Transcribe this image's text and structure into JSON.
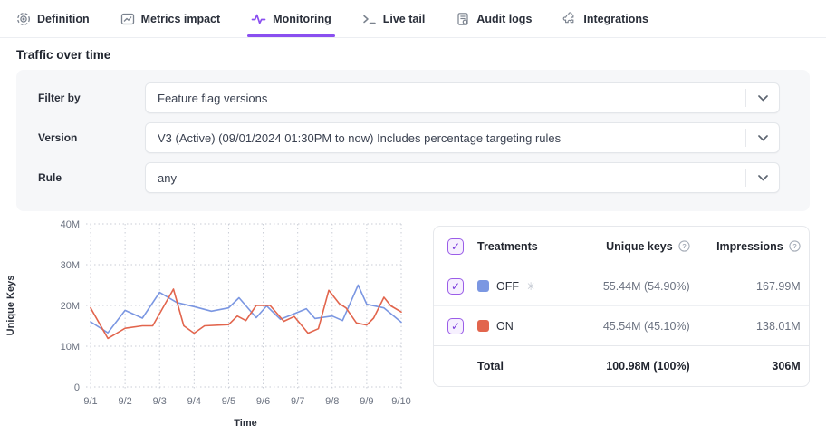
{
  "tabs": [
    {
      "label": "Definition",
      "icon": "target-icon",
      "active": false
    },
    {
      "label": "Metrics impact",
      "icon": "metrics-icon",
      "active": false
    },
    {
      "label": "Monitoring",
      "icon": "pulse-icon",
      "active": true
    },
    {
      "label": "Live tail",
      "icon": "terminal-icon",
      "active": false
    },
    {
      "label": "Audit logs",
      "icon": "audit-icon",
      "active": false
    },
    {
      "label": "Integrations",
      "icon": "puzzle-icon",
      "active": false
    }
  ],
  "page_title": "Traffic over time",
  "filters": [
    {
      "label": "Filter by",
      "value": "Feature flag versions"
    },
    {
      "label": "Version",
      "value": "V3 (Active) (09/01/2024 01:30PM to now) Includes percentage targeting rules"
    },
    {
      "label": "Rule",
      "value": "any"
    }
  ],
  "chart_data": {
    "type": "line",
    "title": "Traffic over time",
    "xlabel": "Time",
    "ylabel": "Unique Keys",
    "unit": "M",
    "ylim": [
      0,
      40
    ],
    "xlim": [
      1,
      10
    ],
    "grid": true,
    "legend": "table-right",
    "y_ticks": [
      {
        "v": 0,
        "label": "0"
      },
      {
        "v": 10,
        "label": "10M"
      },
      {
        "v": 20,
        "label": "20M"
      },
      {
        "v": 30,
        "label": "30M"
      },
      {
        "v": 40,
        "label": "40M"
      }
    ],
    "x_ticks": [
      {
        "v": 1,
        "label": "9/1"
      },
      {
        "v": 2,
        "label": "9/2"
      },
      {
        "v": 3,
        "label": "9/3"
      },
      {
        "v": 4,
        "label": "9/4"
      },
      {
        "v": 5,
        "label": "9/5"
      },
      {
        "v": 6,
        "label": "9/6"
      },
      {
        "v": 7,
        "label": "9/7"
      },
      {
        "v": 8,
        "label": "9/8"
      },
      {
        "v": 9,
        "label": "9/9"
      },
      {
        "v": 10,
        "label": "9/10"
      }
    ],
    "series": [
      {
        "name": "OFF",
        "color": "#7b97e2",
        "points": [
          [
            1,
            16
          ],
          [
            1.5,
            13.3
          ],
          [
            2,
            18.8
          ],
          [
            2.5,
            16.9
          ],
          [
            3,
            23.2
          ],
          [
            3.5,
            20.7
          ],
          [
            4,
            19.7
          ],
          [
            4.5,
            18.6
          ],
          [
            5,
            19.4
          ],
          [
            5.3,
            21.9
          ],
          [
            5.8,
            17
          ],
          [
            6.1,
            19.9
          ],
          [
            6.5,
            16.6
          ],
          [
            6.8,
            17.6
          ],
          [
            7.25,
            19.2
          ],
          [
            7.5,
            16.8
          ],
          [
            8,
            17.4
          ],
          [
            8.3,
            16.3
          ],
          [
            8.75,
            25
          ],
          [
            9,
            20.3
          ],
          [
            9.5,
            19.4
          ],
          [
            10,
            15.9
          ]
        ]
      },
      {
        "name": "ON",
        "color": "#e2654d",
        "points": [
          [
            1,
            19.4
          ],
          [
            1.5,
            11.9
          ],
          [
            2,
            14.4
          ],
          [
            2.5,
            15
          ],
          [
            2.8,
            15
          ],
          [
            3.4,
            24
          ],
          [
            3.7,
            15
          ],
          [
            4,
            13.2
          ],
          [
            4.3,
            15
          ],
          [
            5,
            15.3
          ],
          [
            5.25,
            17.4
          ],
          [
            5.5,
            16.3
          ],
          [
            5.8,
            20
          ],
          [
            6.2,
            20
          ],
          [
            6.6,
            16.1
          ],
          [
            6.9,
            17.3
          ],
          [
            7.3,
            13.2
          ],
          [
            7.6,
            14.3
          ],
          [
            7.9,
            23.7
          ],
          [
            8.2,
            20.5
          ],
          [
            8.4,
            19.4
          ],
          [
            8.7,
            15.7
          ],
          [
            9,
            15.2
          ],
          [
            9.2,
            16.9
          ],
          [
            9.5,
            22
          ],
          [
            9.7,
            19.9
          ],
          [
            10,
            18.4
          ]
        ]
      }
    ]
  },
  "table": {
    "headers": {
      "treatments": "Treatments",
      "unique_keys": "Unique keys",
      "impressions": "Impressions"
    },
    "rows": [
      {
        "label": "OFF",
        "color": "#7b97e2",
        "default_treatment": true,
        "checked": true,
        "unique_keys": "55.44M (54.90%)",
        "impressions": "167.99M"
      },
      {
        "label": "ON",
        "color": "#e2654d",
        "default_treatment": false,
        "checked": true,
        "unique_keys": "45.54M (45.10%)",
        "impressions": "138.01M"
      }
    ],
    "total": {
      "label": "Total",
      "unique_keys": "100.98M (100%)",
      "impressions": "306M"
    }
  },
  "colors": {
    "accent": "#8a4ff0",
    "off_blue": "#7b97e2",
    "on_red": "#e2654d",
    "grid": "#c9cdd6"
  }
}
